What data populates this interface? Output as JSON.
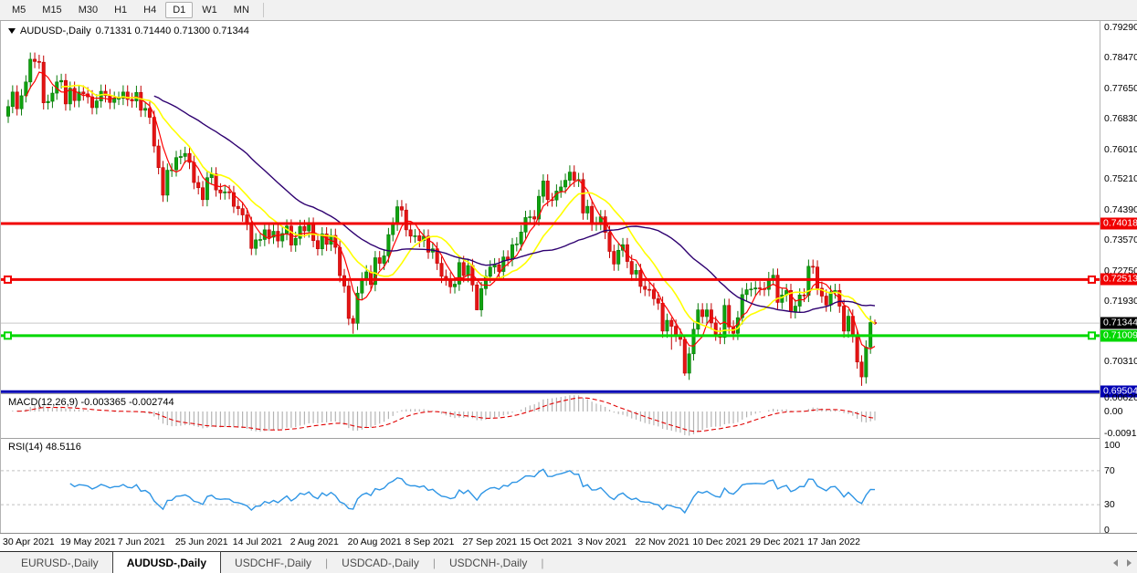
{
  "toolbar": {
    "timeframes": [
      "M5",
      "M15",
      "M30",
      "H1",
      "H4",
      "D1",
      "W1",
      "MN"
    ],
    "active_timeframe": "D1"
  },
  "chart": {
    "title_symbol": "AUDUSD-,Daily",
    "title_ohlc": "0.71331 0.71440 0.71300 0.71344"
  },
  "macd_panel": {
    "name": "MACD(12,26,9)",
    "values": "-0.003365 -0.002744",
    "axis_max": "0.0062013",
    "axis_zero": "0.00",
    "axis_min": "-0.0091973"
  },
  "rsi_panel": {
    "name": "RSI(14)",
    "value": "48.5116",
    "axis": [
      "100",
      "70",
      "30",
      "0"
    ]
  },
  "tabs": {
    "items": [
      "EURUSD-,Daily",
      "AUDUSD-,Daily",
      "USDCHF-,Daily",
      "USDCAD-,Daily",
      "USDCNH-,Daily"
    ],
    "active_index": 1
  },
  "colors": {
    "candle_up": "#0fa30f",
    "candle_up_border": "#0a7a0a",
    "candle_down": "#e41414",
    "candle_down_border": "#c00000",
    "ma_fast": "#ff0000",
    "ma_mid": "#ffff00",
    "ma_slow": "#2e0070",
    "macd_bar": "#b4b4b4",
    "macd_signal": "#e00000",
    "rsi_line": "#2e95e5",
    "rsi_level": "#c0c0c0",
    "current_price_line": "#c8c8c8",
    "current_price_bg": "#000000",
    "separator": "#a0a0a0"
  },
  "chart_data": {
    "type": "candlestick",
    "symbol": "AUDUSD-",
    "timeframe": "Daily",
    "last_bar": {
      "open": 0.71331,
      "high": 0.7144,
      "low": 0.713,
      "close": 0.71344
    },
    "first_open": 0.769,
    "closes": [
      0.7716,
      0.7755,
      0.771,
      0.7745,
      0.7782,
      0.7843,
      0.7837,
      0.7835,
      0.7726,
      0.773,
      0.7752,
      0.7782,
      0.7786,
      0.7723,
      0.7765,
      0.7732,
      0.7755,
      0.775,
      0.7742,
      0.7713,
      0.7731,
      0.7757,
      0.7745,
      0.7727,
      0.7738,
      0.7738,
      0.7755,
      0.7735,
      0.7731,
      0.7754,
      0.7706,
      0.7711,
      0.7687,
      0.761,
      0.7552,
      0.7478,
      0.7545,
      0.7546,
      0.7579,
      0.7582,
      0.759,
      0.7566,
      0.7512,
      0.7498,
      0.7466,
      0.7525,
      0.7535,
      0.7492,
      0.7484,
      0.7487,
      0.7485,
      0.7448,
      0.7442,
      0.7425,
      0.7402,
      0.7335,
      0.7358,
      0.7359,
      0.7385,
      0.7365,
      0.7381,
      0.7355,
      0.7375,
      0.7395,
      0.7344,
      0.7362,
      0.7394,
      0.7382,
      0.74,
      0.7356,
      0.7334,
      0.7374,
      0.7346,
      0.737,
      0.7338,
      0.7262,
      0.7234,
      0.7147,
      0.7134,
      0.7215,
      0.7253,
      0.7272,
      0.7238,
      0.731,
      0.7295,
      0.7315,
      0.7372,
      0.74,
      0.7447,
      0.7438,
      0.7385,
      0.7368,
      0.7369,
      0.7356,
      0.7368,
      0.7325,
      0.7334,
      0.7295,
      0.726,
      0.7253,
      0.7232,
      0.7239,
      0.7297,
      0.7262,
      0.7289,
      0.7237,
      0.717,
      0.7227,
      0.726,
      0.7285,
      0.7291,
      0.7273,
      0.7312,
      0.7305,
      0.7345,
      0.7347,
      0.7379,
      0.7418,
      0.742,
      0.7414,
      0.7475,
      0.7516,
      0.7466,
      0.7465,
      0.7489,
      0.75,
      0.7518,
      0.754,
      0.7518,
      0.752,
      0.743,
      0.7448,
      0.74,
      0.7402,
      0.742,
      0.7378,
      0.7327,
      0.7293,
      0.733,
      0.7345,
      0.73,
      0.7266,
      0.7276,
      0.7233,
      0.7225,
      0.7224,
      0.72,
      0.7188,
      0.7113,
      0.7142,
      0.7126,
      0.7102,
      0.7091,
      0.7,
      0.7052,
      0.7118,
      0.717,
      0.7152,
      0.717,
      0.7135,
      0.7105,
      0.7096,
      0.7182,
      0.7124,
      0.7107,
      0.7149,
      0.7211,
      0.7224,
      0.7226,
      0.7229,
      0.7227,
      0.7225,
      0.7254,
      0.7263,
      0.719,
      0.721,
      0.7222,
      0.7165,
      0.718,
      0.721,
      0.7209,
      0.7287,
      0.7285,
      0.7228,
      0.7207,
      0.7183,
      0.7218,
      0.7222,
      0.718,
      0.7113,
      0.7153,
      0.71,
      0.703,
      0.699,
      0.707,
      0.7136,
      0.71344
    ],
    "wick_overrides": {
      "78": [
        0.7155,
        0.7106
      ],
      "106": [
        0.7245,
        0.7169
      ],
      "150": [
        0.715,
        0.7063
      ],
      "153": [
        0.7098,
        0.6993
      ],
      "193": [
        0.7048,
        0.6966
      ],
      "196": [
        0.7144,
        0.713
      ]
    },
    "moving_averages": [
      {
        "period": 5,
        "color": "#ff0000",
        "width": 1.2
      },
      {
        "period": 13,
        "color": "#ffff00",
        "width": 1.6
      },
      {
        "period": 34,
        "color": "#2e0070",
        "width": 1.4
      }
    ],
    "hlines": [
      {
        "price": 0.74018,
        "label": "0.74018",
        "color": "#f00000",
        "width": 3,
        "selected": false
      },
      {
        "price": 0.72513,
        "label": "0.72513",
        "color": "#f00000",
        "width": 3,
        "selected": true
      },
      {
        "price": 0.71009,
        "label": "0.71009",
        "color": "#00d800",
        "width": 3,
        "selected": true
      },
      {
        "price": 0.69504,
        "label": "0.69504",
        "color": "#0000b4",
        "width": 3,
        "selected": false
      }
    ],
    "current_price": {
      "price": 0.71344,
      "label": "0.71344"
    },
    "price_axis_ticks": [
      "0.79290",
      "0.78470",
      "0.77650",
      "0.76830",
      "0.76010",
      "0.75210",
      "0.74390",
      "0.73570",
      "0.72750",
      "0.71930",
      "0.70310"
    ],
    "x_labels": [
      "30 Apr 2021",
      "19 May 2021",
      "7 Jun 2021",
      "25 Jun 2021",
      "14 Jul 2021",
      "2 Aug 2021",
      "20 Aug 2021",
      "8 Sep 2021",
      "27 Sep 2021",
      "15 Oct 2021",
      "3 Nov 2021",
      "22 Nov 2021",
      "10 Dec 2021",
      "29 Dec 2021",
      "17 Jan 2022"
    ],
    "label_every_n_candles": 13,
    "macd": {
      "fast": 12,
      "slow": 26,
      "signal": 9
    },
    "rsi": {
      "period": 14,
      "levels": [
        70,
        30
      ]
    }
  }
}
